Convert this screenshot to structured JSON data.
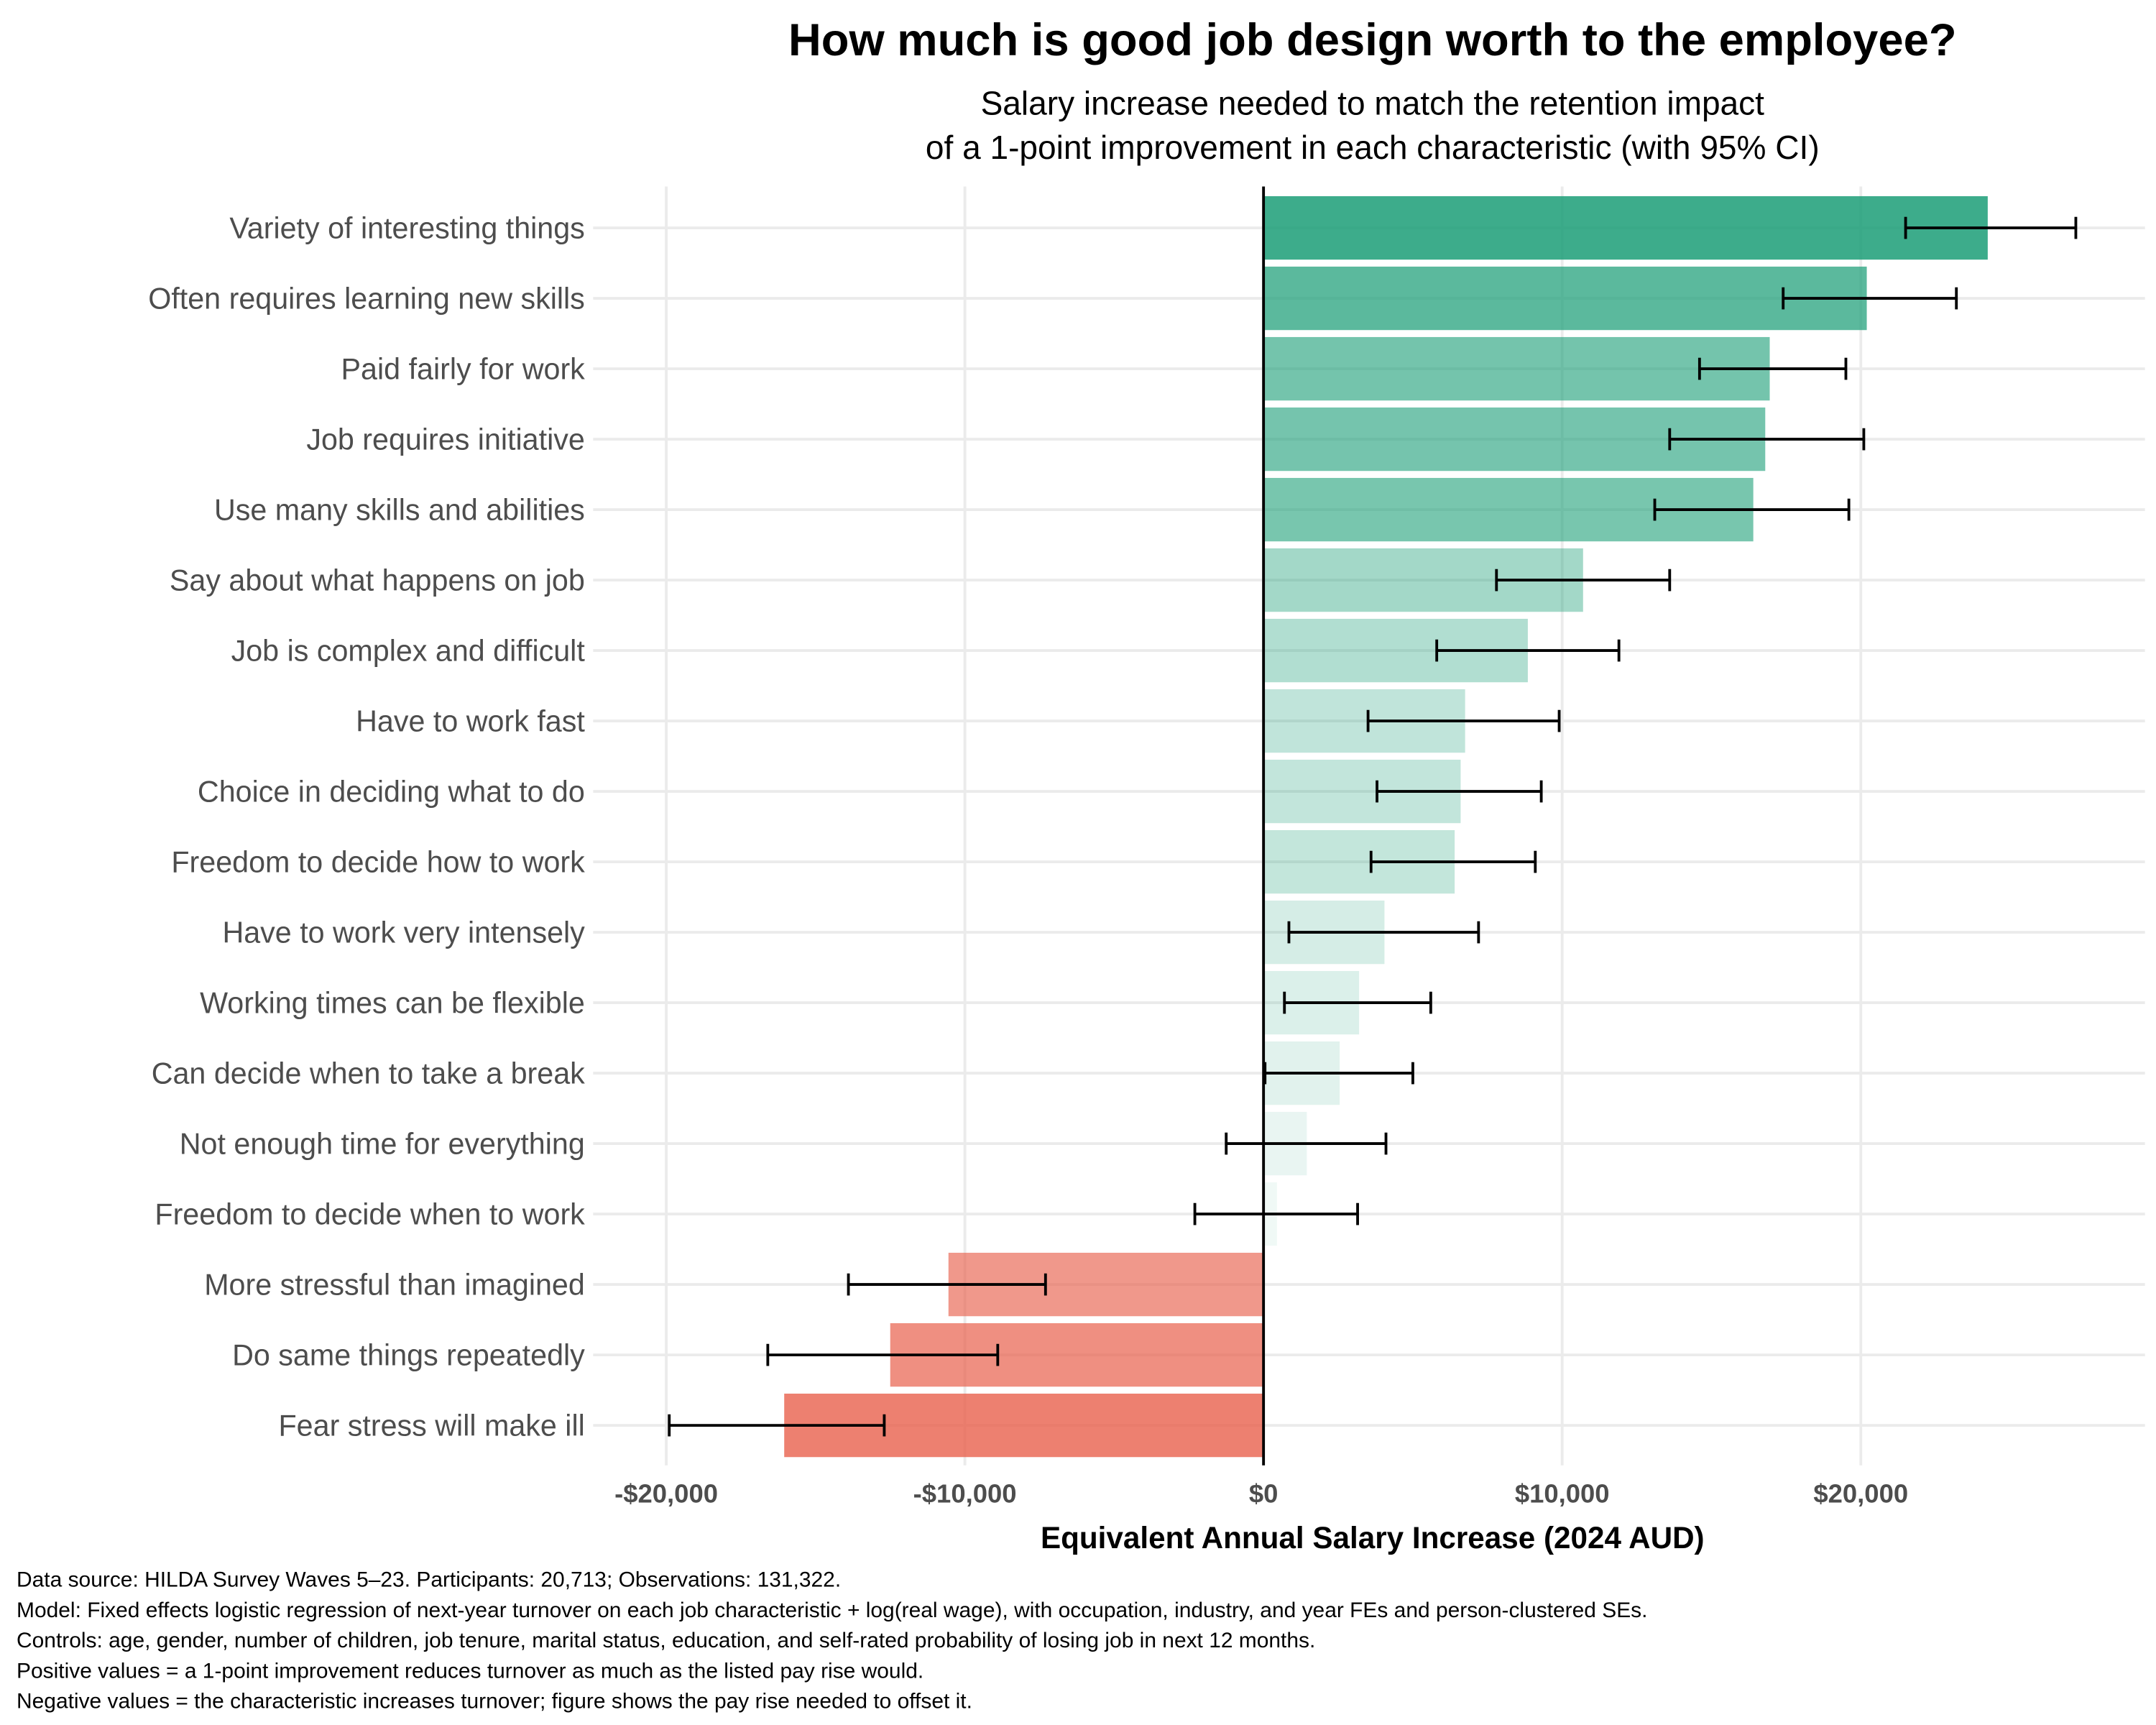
{
  "chart_data": {
    "type": "bar",
    "orientation": "horizontal",
    "title": "How much is good job design worth to the employee?",
    "subtitle": [
      "Salary increase needed to match the retention impact",
      "of a 1-point improvement in each characteristic (with 95% CI)"
    ],
    "xlabel": "Equivalent Annual Salary Increase (2024 AUD)",
    "ylabel": "",
    "xlim": [
      -21500,
      29000
    ],
    "xticks": [
      -20000,
      -10000,
      0,
      10000,
      20000
    ],
    "xtick_labels": [
      "-$20,000",
      "-$10,000",
      "$0",
      "$10,000",
      "$20,000"
    ],
    "grid": true,
    "error_bars": "95% CI",
    "colors": {
      "positive": "#1b9e77",
      "negative": "#e8604c"
    },
    "categories": [
      "Variety of interesting things",
      "Often requires learning new skills",
      "Paid fairly for work",
      "Job requires initiative",
      "Use many skills and abilities",
      "Say about what happens on job",
      "Job is complex and difficult",
      "Have to work fast",
      "Choice in deciding what to do",
      "Freedom to decide how to work",
      "Have to work very intensely",
      "Working times can be flexible",
      "Can decide when to take a break",
      "Not enough time for everything",
      "Freedom to decide when to work",
      "More stressful than imagined",
      "Do same things repeatedly",
      "Fear stress will make ill"
    ],
    "values": [
      24250,
      20200,
      16950,
      16800,
      16400,
      10700,
      8850,
      6750,
      6600,
      6400,
      4050,
      3200,
      2550,
      1450,
      450,
      -10550,
      -12500,
      -16050
    ],
    "ci_low": [
      21500,
      17400,
      14600,
      13600,
      13100,
      7800,
      5800,
      3500,
      3800,
      3600,
      850,
      700,
      50,
      -1250,
      -2300,
      -13900,
      -16600,
      -19900
    ],
    "ci_high": [
      27200,
      23200,
      19500,
      20100,
      19600,
      13600,
      11900,
      9900,
      9300,
      9100,
      7200,
      5600,
      5000,
      4100,
      3150,
      -7300,
      -8900,
      -12700
    ]
  },
  "caption": [
    "Data source: HILDA Survey Waves 5–23. Participants: 20,713; Observations: 131,322.",
    "Model: Fixed effects logistic regression of next-year turnover on each job characteristic + log(real wage), with occupation, industry, and year FEs and person-clustered SEs.",
    "Controls: age, gender, number of children, job tenure, marital status, education, and self-rated probability of losing job in next 12 months.",
    "Positive values = a 1-point improvement reduces turnover as much as the listed pay rise would.",
    "Negative values = the characteristic increases turnover; figure shows the pay rise needed to offset it."
  ]
}
